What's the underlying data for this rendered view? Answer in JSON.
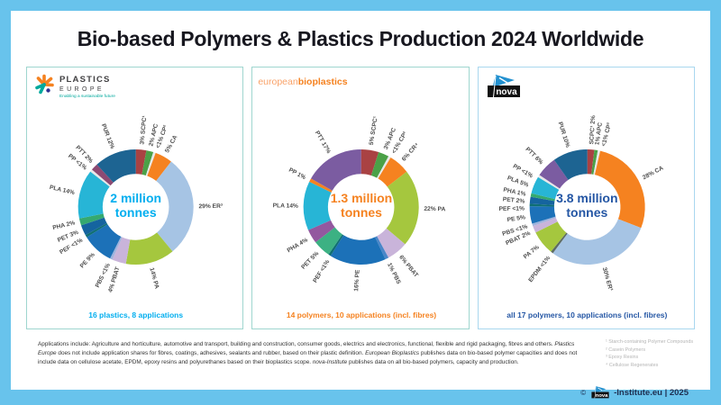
{
  "title": "Bio-based Polymers & Plastics Production 2024 Worldwide",
  "colors": {
    "frame": "#68c3ec",
    "card": "#ffffff",
    "title_text": "#17171f",
    "segment_label": "#4d4d4d",
    "footnote_text": "#b5b5b5",
    "footer_text": "#333333",
    "copyright_text": "#1d2e50"
  },
  "panels": [
    {
      "org": "Plastics Europe",
      "accent": "#00aeef",
      "border": "#9fd6cf",
      "logo": {
        "line1": "PLASTICS",
        "line2": "EUROPE",
        "tagline": "Enabling a sustainable future"
      },
      "center_line1": "2 million",
      "center_line2": "tonnes",
      "caption": "16 plastics, 8 applications"
    },
    {
      "org": "European Bioplastics",
      "accent": "#f58220",
      "border": "#9fd6cf",
      "logo": {
        "part1": "european",
        "part2": "bioplastics"
      },
      "center_line1": "1.3 million",
      "center_line2": "tonnes",
      "caption": "14 polymers, 10 applications (incl. fibres)"
    },
    {
      "org": "nova-Institute",
      "accent": "#2456a4",
      "border": "#a9d7ef",
      "logo": {
        "text": "nova"
      },
      "center_line1": "3.8 million",
      "center_line2": "tonnes",
      "caption": "all 17 polymers, 10 applications (incl. fibres)"
    }
  ],
  "chart_data": [
    {
      "type": "donut",
      "title": "Plastics Europe — Bio-based plastics production 2024",
      "total_label": "2 million tonnes",
      "unit": "percent share",
      "segments": [
        {
          "label": "3% SCPC¹",
          "value": 3,
          "color": "#a94243"
        },
        {
          "label": "2% APC",
          "value": 2,
          "color": "#4ba147",
          "la": 13.5
        },
        {
          "label": "<1% CP²",
          "value": 0.7,
          "color": "#e8e8e8",
          "la": 20
        },
        {
          "label": "5% CA",
          "value": 5,
          "color": "#f58220"
        },
        {
          "label": "29% ER³",
          "value": 29,
          "color": "#a6c4e4"
        },
        {
          "label": "14% PA",
          "value": 14,
          "color": "#a5c73e"
        },
        {
          "label": "4% PBAT",
          "value": 4,
          "color": "#c9b4da"
        },
        {
          "label": "PBS <1%",
          "value": 0.7,
          "color": "#9fb3dd",
          "la": 206
        },
        {
          "label": "PE 9%",
          "value": 9,
          "color": "#1c71b8"
        },
        {
          "label": "PEF <1%",
          "value": 0.7,
          "color": "#0f6f74",
          "la": 239
        },
        {
          "label": "PET 3%",
          "value": 3,
          "color": "#15649f",
          "la": 247
        },
        {
          "label": "PHA 2%",
          "value": 2,
          "color": "#35a970",
          "la": 256
        },
        {
          "label": "PLA 14%",
          "value": 14,
          "color": "#27b5d6"
        },
        {
          "label": "PP <1%",
          "value": 0.7,
          "color": "#e8e8e8",
          "la": 308
        },
        {
          "label": "PTT 2%",
          "value": 2,
          "color": "#8d4a73",
          "la": 316
        },
        {
          "label": "PUR 12%",
          "value": 12,
          "color": "#1d6492"
        }
      ]
    },
    {
      "type": "donut",
      "title": "European Bioplastics — Bio-based polymers capacity 2024",
      "total_label": "1.3 million tonnes",
      "unit": "percent share",
      "segments": [
        {
          "label": "5% SCPC¹",
          "value": 5,
          "color": "#a94243"
        },
        {
          "label": "3% APC",
          "value": 3,
          "color": "#4ba147",
          "la": 22.5
        },
        {
          "label": "<1% CP²",
          "value": 0.7,
          "color": "#e8e8e8",
          "la": 30.5
        },
        {
          "label": "6% CR⁴",
          "value": 6,
          "color": "#f58220"
        },
        {
          "label": "22% PA",
          "value": 22,
          "color": "#a5c73e"
        },
        {
          "label": "6% PBAT",
          "value": 6,
          "color": "#c9b4da"
        },
        {
          "label": "1% PBS",
          "value": 1,
          "color": "#4a86c8"
        },
        {
          "label": "16% PE",
          "value": 16,
          "color": "#1c71b8"
        },
        {
          "label": "PEF <1%",
          "value": 0.7,
          "color": "#0f6f74",
          "la": 212
        },
        {
          "label": "PET 5%",
          "value": 5,
          "color": "#3cb183",
          "la": 224
        },
        {
          "label": "PHA 4%",
          "value": 4,
          "color": "#93589f"
        },
        {
          "label": "PLA 14%",
          "value": 14,
          "color": "#27b5d6"
        },
        {
          "label": "PP 1%",
          "value": 1,
          "color": "#f58220"
        },
        {
          "label": "PTT 17%",
          "value": 17,
          "color": "#7b5ca1"
        }
      ]
    },
    {
      "type": "donut",
      "title": "nova-Institute — Bio-based polymers production 2024",
      "total_label": "3.8 million tonnes",
      "unit": "percent share",
      "segments": [
        {
          "label": "SCPC¹ 2%",
          "value": 2,
          "color": "#a94243"
        },
        {
          "label": "1% APC",
          "value": 1,
          "color": "#4ba147",
          "la": 8.5
        },
        {
          "label": "<1% CP²",
          "value": 0.7,
          "color": "#e8e8e8",
          "la": 14.5
        },
        {
          "label": "28% CA",
          "value": 28,
          "color": "#f58220"
        },
        {
          "label": "30% ER³",
          "value": 30,
          "color": "#a6c4e4"
        },
        {
          "label": "EPDM <1%",
          "value": 0.7,
          "color": "#5d6b64"
        },
        {
          "label": "PA 7%",
          "value": 7,
          "color": "#a5c73e"
        },
        {
          "label": "PBAT 2%",
          "value": 2,
          "color": "#c9b4da",
          "la": 246
        },
        {
          "label": "PBS <1%",
          "value": 0.7,
          "color": "#9fb3dd",
          "la": 252.5
        },
        {
          "label": "PE 5%",
          "value": 5,
          "color": "#1c71b8",
          "la": 261
        },
        {
          "label": "PEF <1%",
          "value": 0.7,
          "color": "#0f6f74",
          "la": 269
        },
        {
          "label": "PET 2%",
          "value": 2,
          "color": "#15649f",
          "la": 275.5
        },
        {
          "label": "PHA 1%",
          "value": 1,
          "color": "#35a970",
          "la": 282
        },
        {
          "label": "PLA 5%",
          "value": 5,
          "color": "#27b5d6",
          "la": 290.5
        },
        {
          "label": "PP <1%",
          "value": 0.7,
          "color": "#e8e8e8",
          "la": 299.5
        },
        {
          "label": "PTT 6%",
          "value": 6,
          "color": "#7b5ca1"
        },
        {
          "label": "PUR 10%",
          "value": 10,
          "color": "#1d6492"
        }
      ]
    }
  ],
  "footer": {
    "segments": [
      {
        "text": "Applications include: Agriculture and horticulture, automotive and transport, building and construction, consumer goods, electrics and electronics, functional, flexible and rigid packaging, fibres and others. ",
        "italic": false
      },
      {
        "text": "Plastics Europe",
        "italic": true
      },
      {
        "text": " does not include application shares for fibres, coatings, adhesives, sealants and rubber, based on their plastic definition. ",
        "italic": false
      },
      {
        "text": "European Bioplastics",
        "italic": true
      },
      {
        "text": " publishes data on bio-based polymer capacities and does not include data on cellulose acetate, EPDM, epoxy resins and polyurethanes based on their bioplastics scope. ",
        "italic": false
      },
      {
        "text": "nova-Institute",
        "italic": true
      },
      {
        "text": " publishes data on all bio-based polymers, capacity and production.",
        "italic": false
      }
    ]
  },
  "footnotes": [
    "¹ Starch-containing Polymer Compounds",
    "² Casein Polymers",
    "³ Epoxy Resins",
    "⁴ Cellulose Regenerates"
  ],
  "copyright": {
    "symbol": "©",
    "logo_text": "nova",
    "suffix": "-Institute.eu | 2025"
  }
}
